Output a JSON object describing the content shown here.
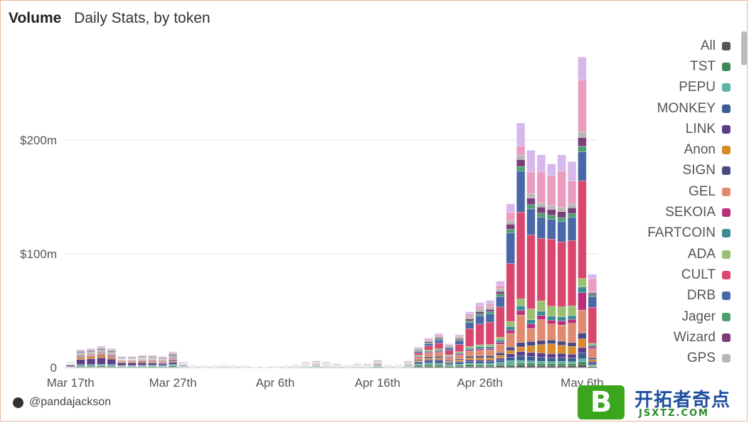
{
  "header": {
    "title": "Volume",
    "subtitle": "Daily Stats, by token"
  },
  "credit": "@pandajackson",
  "watermark": {
    "logo_letter": "B",
    "name": "开拓者奇点",
    "url": "JSXTZ.COM"
  },
  "chart_data": {
    "type": "bar",
    "stacked": true,
    "ylabel": "",
    "ylim": [
      0,
      260
    ],
    "yticks": [
      {
        "v": 0,
        "label": "0"
      },
      {
        "v": 100,
        "label": "$100m"
      },
      {
        "v": 200,
        "label": "$200m"
      }
    ],
    "xticks": [
      {
        "i": 0,
        "label": "Mar 17th"
      },
      {
        "i": 10,
        "label": "Mar 27th"
      },
      {
        "i": 20,
        "label": "Apr 6th"
      },
      {
        "i": 30,
        "label": "Apr 16th"
      },
      {
        "i": 40,
        "label": "Apr 26th"
      },
      {
        "i": 50,
        "label": "May 6th"
      }
    ],
    "days": [
      "Mar 16",
      "Mar 17",
      "Mar 18",
      "Mar 19",
      "Mar 20",
      "Mar 21",
      "Mar 22",
      "Mar 23",
      "Mar 24",
      "Mar 25",
      "Mar 26",
      "Mar 27",
      "Mar 28",
      "Mar 29",
      "Mar 30",
      "Mar 31",
      "Apr 1",
      "Apr 2",
      "Apr 3",
      "Apr 4",
      "Apr 5",
      "Apr 6",
      "Apr 7",
      "Apr 8",
      "Apr 9",
      "Apr 10",
      "Apr 11",
      "Apr 12",
      "Apr 13",
      "Apr 14",
      "Apr 15",
      "Apr 16",
      "Apr 17",
      "Apr 18",
      "Apr 19",
      "Apr 20",
      "Apr 21",
      "Apr 22",
      "Apr 23",
      "Apr 24",
      "Apr 25",
      "Apr 26",
      "Apr 27",
      "Apr 28",
      "Apr 29",
      "Apr 30",
      "May 1",
      "May 2",
      "May 3",
      "May 4",
      "May 5",
      "May 6"
    ],
    "totals": [
      5,
      16,
      17,
      19,
      17,
      10,
      10,
      11,
      11,
      10,
      14,
      5,
      2,
      2,
      2,
      3,
      2,
      2,
      1,
      1,
      1,
      2,
      3,
      5,
      6,
      5,
      4,
      3,
      4,
      4,
      7,
      3,
      3,
      6,
      18,
      26,
      30,
      21,
      29,
      49,
      57,
      59,
      76,
      144,
      215,
      191,
      187,
      179,
      187,
      181,
      273,
      82
    ],
    "series": [
      {
        "name": "All",
        "color": "#555555",
        "share": [
          0.03,
          0.03,
          0.03,
          0.03,
          0.03,
          0.03,
          0.03,
          0.03,
          0.03,
          0.03,
          0.03,
          0.03,
          0.03,
          0.03,
          0.03,
          0.03,
          0.03,
          0.03,
          0.03,
          0.03,
          0.03,
          0.03,
          0.03,
          0.03,
          0.03,
          0.03,
          0.03,
          0.03,
          0.03,
          0.03,
          0.03,
          0.03,
          0.03,
          0.03,
          0.03,
          0.03,
          0.03,
          0.03,
          0.03,
          0.02,
          0.02,
          0.02,
          0.02,
          0.01,
          0.01,
          0.01,
          0.01,
          0.01,
          0.01,
          0.01,
          0.01,
          0.01
        ]
      },
      {
        "name": "TST",
        "color": "#3e8a55",
        "share": [
          0.05,
          0.05,
          0.05,
          0.05,
          0.05,
          0.05,
          0.05,
          0.05,
          0.05,
          0.05,
          0.05,
          0.05,
          0.05,
          0.05,
          0.05,
          0.05,
          0.05,
          0.05,
          0.05,
          0.05,
          0.05,
          0.05,
          0.05,
          0.05,
          0.05,
          0.05,
          0.05,
          0.05,
          0.05,
          0.05,
          0.05,
          0.05,
          0.05,
          0.05,
          0.06,
          0.05,
          0.04,
          0.04,
          0.03,
          0.03,
          0.02,
          0.02,
          0.02,
          0.01,
          0.01,
          0.01,
          0.01,
          0.01,
          0.01,
          0.01,
          0.01,
          0.01
        ]
      },
      {
        "name": "PEPU",
        "color": "#5fb3a2",
        "share": [
          0.06,
          0.06,
          0.06,
          0.06,
          0.06,
          0.06,
          0.06,
          0.06,
          0.06,
          0.06,
          0.06,
          0.06,
          0.06,
          0.06,
          0.06,
          0.06,
          0.06,
          0.06,
          0.06,
          0.06,
          0.06,
          0.06,
          0.06,
          0.06,
          0.06,
          0.06,
          0.06,
          0.06,
          0.06,
          0.06,
          0.06,
          0.06,
          0.06,
          0.06,
          0.05,
          0.05,
          0.04,
          0.04,
          0.03,
          0.02,
          0.02,
          0.02,
          0.02,
          0.02,
          0.01,
          0.01,
          0.01,
          0.01,
          0.01,
          0.01,
          0.01,
          0.01
        ]
      },
      {
        "name": "MONKEY",
        "color": "#3a5f8f",
        "share": [
          0.05,
          0.05,
          0.05,
          0.05,
          0.05,
          0.05,
          0.05,
          0.05,
          0.05,
          0.05,
          0.05,
          0.05,
          0.05,
          0.05,
          0.05,
          0.05,
          0.05,
          0.05,
          0.05,
          0.05,
          0.05,
          0.05,
          0.05,
          0.05,
          0.05,
          0.05,
          0.05,
          0.05,
          0.05,
          0.05,
          0.05,
          0.05,
          0.05,
          0.05,
          0.06,
          0.06,
          0.06,
          0.05,
          0.05,
          0.03,
          0.03,
          0.03,
          0.03,
          0.02,
          0.02,
          0.02,
          0.02,
          0.02,
          0.02,
          0.02,
          0.02,
          0.02
        ]
      },
      {
        "name": "LINK",
        "color": "#5c3e8a",
        "share": [
          0.25,
          0.3,
          0.35,
          0.35,
          0.3,
          0.25,
          0.25,
          0.2,
          0.15,
          0.15,
          0.1,
          0.1,
          0.05,
          0.05,
          0.05,
          0.05,
          0.05,
          0.05,
          0.05,
          0.05,
          0.05,
          0.05,
          0.05,
          0.05,
          0.05,
          0.05,
          0.05,
          0.05,
          0.05,
          0.05,
          0.05,
          0.05,
          0.05,
          0.05,
          0.04,
          0.04,
          0.04,
          0.04,
          0.03,
          0.03,
          0.02,
          0.02,
          0.02,
          0.02,
          0.02,
          0.02,
          0.02,
          0.02,
          0.02,
          0.02,
          0.02,
          0.02
        ]
      },
      {
        "name": "Anon",
        "color": "#d98a2b",
        "share": [
          0.08,
          0.1,
          0.12,
          0.12,
          0.1,
          0.08,
          0.08,
          0.08,
          0.06,
          0.06,
          0.05,
          0.05,
          0.05,
          0.05,
          0.05,
          0.05,
          0.05,
          0.05,
          0.05,
          0.05,
          0.05,
          0.05,
          0.05,
          0.05,
          0.05,
          0.05,
          0.05,
          0.05,
          0.05,
          0.05,
          0.05,
          0.05,
          0.05,
          0.05,
          0.04,
          0.04,
          0.04,
          0.04,
          0.04,
          0.03,
          0.03,
          0.03,
          0.03,
          0.02,
          0.02,
          0.03,
          0.04,
          0.05,
          0.04,
          0.04,
          0.03,
          0.02
        ]
      },
      {
        "name": "SIGN",
        "color": "#4a4a80",
        "share": [
          0.05,
          0.05,
          0.05,
          0.05,
          0.05,
          0.05,
          0.05,
          0.05,
          0.05,
          0.05,
          0.05,
          0.05,
          0.05,
          0.05,
          0.05,
          0.05,
          0.05,
          0.05,
          0.05,
          0.05,
          0.05,
          0.05,
          0.05,
          0.05,
          0.05,
          0.05,
          0.05,
          0.05,
          0.05,
          0.05,
          0.05,
          0.05,
          0.05,
          0.05,
          0.04,
          0.04,
          0.04,
          0.04,
          0.03,
          0.03,
          0.03,
          0.03,
          0.03,
          0.02,
          0.02,
          0.02,
          0.02,
          0.02,
          0.02,
          0.02,
          0.02,
          0.02
        ]
      },
      {
        "name": "GEL",
        "color": "#e08a70",
        "share": [
          0.05,
          0.05,
          0.05,
          0.05,
          0.05,
          0.05,
          0.05,
          0.05,
          0.05,
          0.05,
          0.05,
          0.05,
          0.05,
          0.05,
          0.05,
          0.05,
          0.05,
          0.05,
          0.05,
          0.05,
          0.05,
          0.05,
          0.05,
          0.05,
          0.05,
          0.05,
          0.05,
          0.05,
          0.05,
          0.05,
          0.05,
          0.05,
          0.05,
          0.05,
          0.08,
          0.1,
          0.1,
          0.1,
          0.1,
          0.08,
          0.08,
          0.08,
          0.1,
          0.08,
          0.12,
          0.06,
          0.1,
          0.08,
          0.08,
          0.1,
          0.08,
          0.1
        ]
      },
      {
        "name": "SEKOIA",
        "color": "#b8307a",
        "share": [
          0.05,
          0.05,
          0.05,
          0.05,
          0.05,
          0.05,
          0.05,
          0.05,
          0.05,
          0.05,
          0.05,
          0.05,
          0.05,
          0.05,
          0.05,
          0.05,
          0.05,
          0.05,
          0.05,
          0.05,
          0.05,
          0.05,
          0.05,
          0.05,
          0.05,
          0.05,
          0.05,
          0.05,
          0.05,
          0.05,
          0.05,
          0.05,
          0.05,
          0.05,
          0.03,
          0.03,
          0.03,
          0.03,
          0.03,
          0.02,
          0.02,
          0.02,
          0.02,
          0.02,
          0.02,
          0.02,
          0.02,
          0.02,
          0.02,
          0.02,
          0.06,
          0.02
        ]
      },
      {
        "name": "FARTCOIN",
        "color": "#3d8a96",
        "share": [
          0.03,
          0.03,
          0.03,
          0.03,
          0.03,
          0.03,
          0.03,
          0.03,
          0.03,
          0.03,
          0.03,
          0.03,
          0.03,
          0.03,
          0.03,
          0.03,
          0.03,
          0.03,
          0.03,
          0.03,
          0.03,
          0.03,
          0.03,
          0.03,
          0.03,
          0.03,
          0.03,
          0.03,
          0.03,
          0.03,
          0.03,
          0.03,
          0.03,
          0.03,
          0.03,
          0.03,
          0.03,
          0.03,
          0.03,
          0.03,
          0.03,
          0.03,
          0.03,
          0.02,
          0.02,
          0.02,
          0.02,
          0.02,
          0.02,
          0.02,
          0.02,
          0.02
        ]
      },
      {
        "name": "ADA",
        "color": "#98c070",
        "share": [
          0.04,
          0.04,
          0.04,
          0.04,
          0.04,
          0.04,
          0.04,
          0.04,
          0.04,
          0.04,
          0.04,
          0.04,
          0.04,
          0.04,
          0.04,
          0.04,
          0.04,
          0.04,
          0.04,
          0.04,
          0.04,
          0.04,
          0.04,
          0.04,
          0.04,
          0.04,
          0.04,
          0.04,
          0.04,
          0.04,
          0.04,
          0.04,
          0.04,
          0.04,
          0.03,
          0.03,
          0.03,
          0.03,
          0.03,
          0.03,
          0.03,
          0.03,
          0.03,
          0.03,
          0.03,
          0.05,
          0.05,
          0.05,
          0.05,
          0.05,
          0.03,
          0.02
        ]
      },
      {
        "name": "CULT",
        "color": "#d9476f",
        "share": [
          0.03,
          0.03,
          0.03,
          0.03,
          0.03,
          0.03,
          0.03,
          0.03,
          0.03,
          0.03,
          0.03,
          0.03,
          0.03,
          0.03,
          0.03,
          0.03,
          0.03,
          0.03,
          0.03,
          0.03,
          0.03,
          0.03,
          0.03,
          0.03,
          0.03,
          0.03,
          0.03,
          0.03,
          0.03,
          0.03,
          0.03,
          0.03,
          0.03,
          0.03,
          0.1,
          0.12,
          0.15,
          0.18,
          0.2,
          0.3,
          0.3,
          0.32,
          0.35,
          0.34,
          0.38,
          0.34,
          0.3,
          0.34,
          0.32,
          0.34,
          0.34,
          0.4
        ]
      },
      {
        "name": "DRB",
        "color": "#4a68a8",
        "share": [
          0.03,
          0.03,
          0.03,
          0.03,
          0.03,
          0.03,
          0.03,
          0.03,
          0.03,
          0.03,
          0.03,
          0.03,
          0.03,
          0.03,
          0.03,
          0.03,
          0.03,
          0.03,
          0.03,
          0.03,
          0.03,
          0.03,
          0.03,
          0.03,
          0.03,
          0.03,
          0.03,
          0.03,
          0.03,
          0.03,
          0.03,
          0.03,
          0.03,
          0.03,
          0.05,
          0.06,
          0.08,
          0.08,
          0.1,
          0.1,
          0.12,
          0.12,
          0.12,
          0.18,
          0.18,
          0.12,
          0.1,
          0.1,
          0.1,
          0.12,
          0.1,
          0.12
        ]
      },
      {
        "name": "Jager",
        "color": "#4f9e72",
        "share": [
          0.03,
          0.03,
          0.03,
          0.03,
          0.03,
          0.03,
          0.03,
          0.03,
          0.03,
          0.03,
          0.03,
          0.03,
          0.03,
          0.03,
          0.03,
          0.03,
          0.03,
          0.03,
          0.03,
          0.03,
          0.03,
          0.03,
          0.03,
          0.03,
          0.03,
          0.03,
          0.03,
          0.03,
          0.03,
          0.03,
          0.03,
          0.03,
          0.03,
          0.03,
          0.03,
          0.03,
          0.03,
          0.03,
          0.03,
          0.03,
          0.03,
          0.03,
          0.03,
          0.02,
          0.02,
          0.02,
          0.02,
          0.02,
          0.02,
          0.02,
          0.02,
          0.02
        ]
      },
      {
        "name": "Wizard",
        "color": "#7a3e78",
        "share": [
          0.05,
          0.05,
          0.05,
          0.05,
          0.05,
          0.05,
          0.05,
          0.05,
          0.05,
          0.05,
          0.05,
          0.05,
          0.05,
          0.05,
          0.05,
          0.05,
          0.05,
          0.05,
          0.05,
          0.05,
          0.05,
          0.05,
          0.05,
          0.05,
          0.05,
          0.05,
          0.05,
          0.05,
          0.05,
          0.05,
          0.05,
          0.05,
          0.05,
          0.05,
          0.03,
          0.03,
          0.03,
          0.03,
          0.03,
          0.03,
          0.03,
          0.03,
          0.03,
          0.03,
          0.03,
          0.03,
          0.03,
          0.03,
          0.03,
          0.03,
          0.03,
          0.02
        ]
      },
      {
        "name": "GPS",
        "color": "#b8b8b8",
        "share": [
          0.1,
          0.1,
          0.1,
          0.1,
          0.1,
          0.1,
          0.1,
          0.1,
          0.1,
          0.1,
          0.1,
          0.1,
          0.1,
          0.1,
          0.1,
          0.1,
          0.1,
          0.1,
          0.1,
          0.1,
          0.1,
          0.1,
          0.1,
          0.1,
          0.1,
          0.1,
          0.1,
          0.1,
          0.1,
          0.1,
          0.1,
          0.1,
          0.1,
          0.1,
          0.06,
          0.05,
          0.05,
          0.05,
          0.05,
          0.04,
          0.04,
          0.04,
          0.03,
          0.02,
          0.02,
          0.02,
          0.02,
          0.02,
          0.02,
          0.02,
          0.02,
          0.02
        ]
      },
      {
        "name": "",
        "color": "#e99cc0",
        "share": [
          0.03,
          0.03,
          0.03,
          0.03,
          0.03,
          0.03,
          0.03,
          0.03,
          0.03,
          0.03,
          0.03,
          0.03,
          0.03,
          0.03,
          0.03,
          0.03,
          0.03,
          0.03,
          0.03,
          0.03,
          0.03,
          0.03,
          0.03,
          0.03,
          0.03,
          0.03,
          0.03,
          0.03,
          0.03,
          0.03,
          0.03,
          0.03,
          0.03,
          0.03,
          0.03,
          0.03,
          0.03,
          0.03,
          0.03,
          0.04,
          0.04,
          0.04,
          0.04,
          0.05,
          0.04,
          0.1,
          0.15,
          0.15,
          0.18,
          0.12,
          0.18,
          0.14
        ]
      },
      {
        "name": "",
        "color": "#d6b8ec",
        "share": [
          0.03,
          0.03,
          0.03,
          0.03,
          0.03,
          0.03,
          0.03,
          0.03,
          0.03,
          0.03,
          0.03,
          0.03,
          0.03,
          0.03,
          0.03,
          0.03,
          0.03,
          0.03,
          0.03,
          0.03,
          0.03,
          0.03,
          0.03,
          0.03,
          0.03,
          0.03,
          0.03,
          0.03,
          0.03,
          0.03,
          0.03,
          0.03,
          0.03,
          0.03,
          0.03,
          0.03,
          0.03,
          0.03,
          0.03,
          0.04,
          0.05,
          0.05,
          0.05,
          0.05,
          0.1,
          0.1,
          0.08,
          0.06,
          0.08,
          0.1,
          0.08,
          0.05
        ]
      }
    ]
  },
  "legend": [
    "All",
    "TST",
    "PEPU",
    "MONKEY",
    "LINK",
    "Anon",
    "SIGN",
    "GEL",
    "SEKOIA",
    "FARTCOIN",
    "ADA",
    "CULT",
    "DRB",
    "Jager",
    "Wizard",
    "GPS"
  ]
}
